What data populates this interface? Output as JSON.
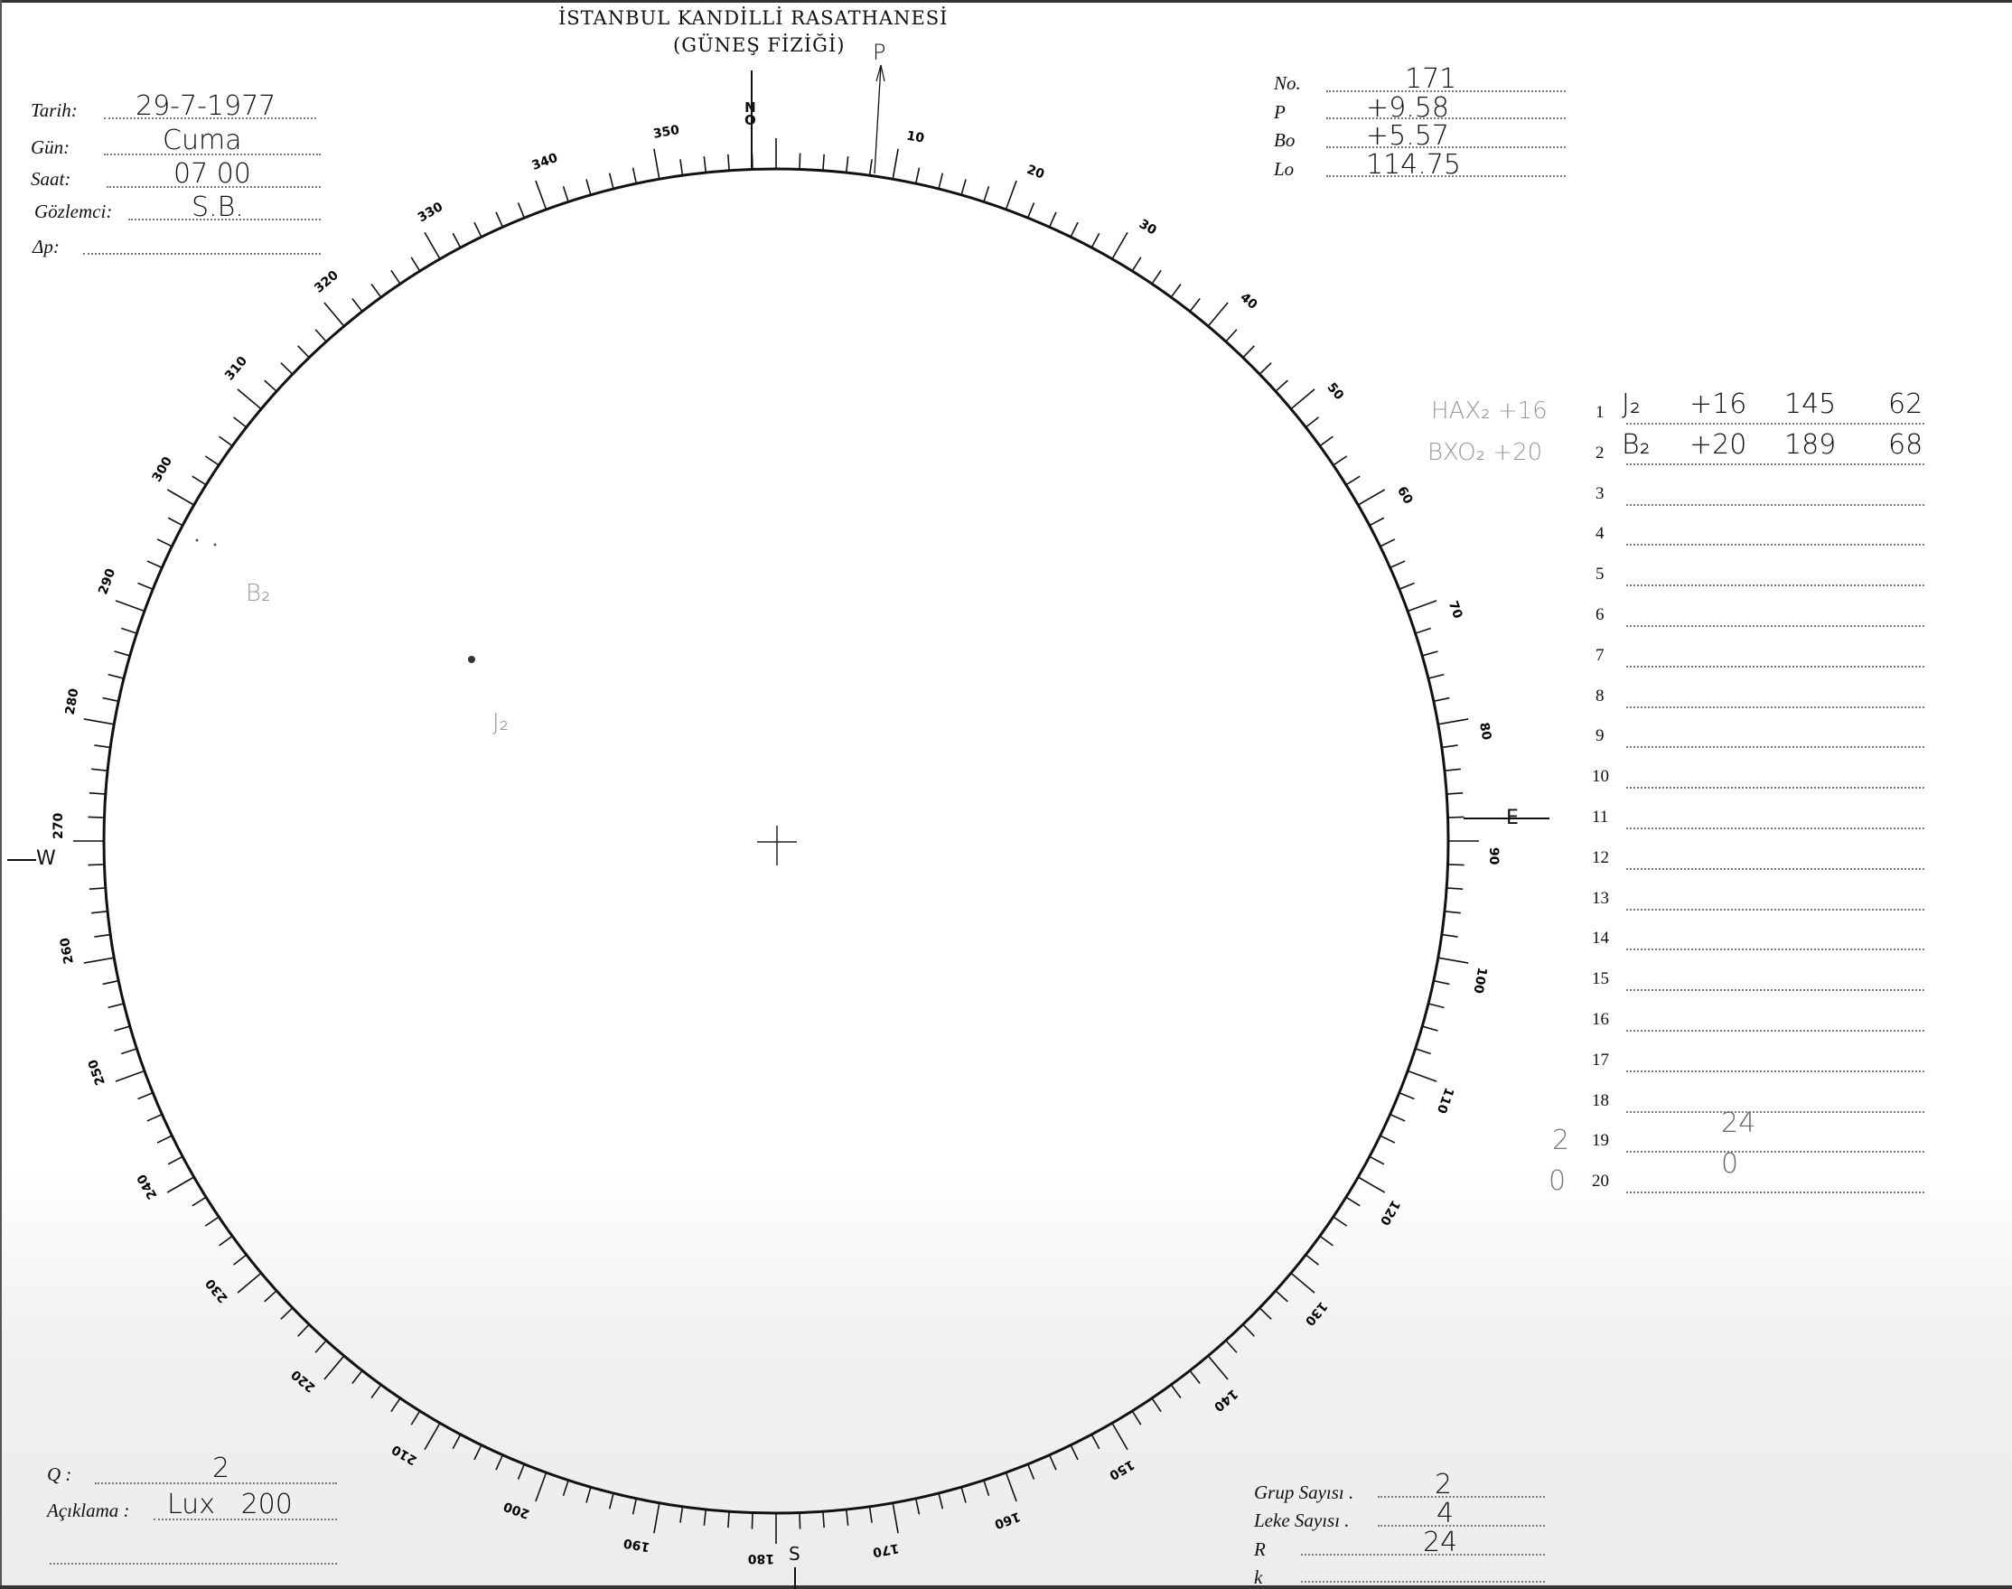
{
  "header": {
    "institution": "İSTANBUL KANDİLLİ RASATHANESİ",
    "department": "(GÜNEŞ FİZİĞİ)"
  },
  "observation": {
    "fields": [
      {
        "label": "Tarih:",
        "value": "29-7-1977"
      },
      {
        "label": "Gün:",
        "value": "Cuma"
      },
      {
        "label": "Saat:",
        "value": "07 00"
      },
      {
        "label": "Gözlemci:",
        "value": "S.B."
      },
      {
        "label": "Δp:",
        "value": ""
      }
    ]
  },
  "ephemeris": {
    "fields": [
      {
        "label": "No.",
        "value": "171"
      },
      {
        "label": "P",
        "value": "+9.58"
      },
      {
        "label": "Bo",
        "value": "+5.57"
      },
      {
        "label": "Lo",
        "value": "114.75"
      }
    ]
  },
  "disk": {
    "north": "N",
    "north_sub": "O",
    "east": "E",
    "west": "W",
    "south": "S",
    "p_axis": "P",
    "degree_labels": [
      "10",
      "20",
      "30",
      "40",
      "50",
      "60",
      "70",
      "80",
      "90",
      "100",
      "110",
      "120",
      "130",
      "140",
      "150",
      "160",
      "170",
      "180",
      "190",
      "200",
      "210",
      "220",
      "230",
      "240",
      "250",
      "260",
      "270",
      "280",
      "290",
      "300",
      "310",
      "320",
      "330",
      "340",
      "350"
    ],
    "sketch_labels": [
      {
        "text": "B₂"
      },
      {
        "text": "J₂"
      }
    ]
  },
  "groups": {
    "pencil_notes": [
      "HAX₂ +16",
      "BXO₂ +20"
    ],
    "rows": [
      {
        "n": "1",
        "name": "J₂",
        "lat": "+16",
        "lon": "145",
        "count": "62"
      },
      {
        "n": "2",
        "name": "B₂",
        "lat": "+20",
        "lon": "189",
        "count": "68"
      },
      {
        "n": "3"
      },
      {
        "n": "4"
      },
      {
        "n": "5"
      },
      {
        "n": "6"
      },
      {
        "n": "7"
      },
      {
        "n": "8"
      },
      {
        "n": "9"
      },
      {
        "n": "10"
      },
      {
        "n": "11"
      },
      {
        "n": "12"
      },
      {
        "n": "13"
      },
      {
        "n": "14"
      },
      {
        "n": "15"
      },
      {
        "n": "16"
      },
      {
        "n": "17"
      },
      {
        "n": "18"
      },
      {
        "n": "19",
        "mid": "24"
      },
      {
        "n": "20",
        "mid": "0"
      }
    ],
    "margin_marks": [
      "2",
      "0"
    ]
  },
  "footer_left": {
    "fields": [
      {
        "label": "Q :",
        "value": "2"
      },
      {
        "label": "Açıklama :",
        "value": "Lux   200"
      }
    ]
  },
  "footer_right": {
    "fields": [
      {
        "label": "Grup Sayısı .",
        "value": "2"
      },
      {
        "label": "Leke Sayısı .",
        "value": "4"
      },
      {
        "label": "R",
        "value": "24"
      },
      {
        "label": "k",
        "value": ""
      }
    ]
  },
  "colors": {
    "ink": "#111111",
    "pencil": "#999999",
    "paper": "#ffffff"
  }
}
